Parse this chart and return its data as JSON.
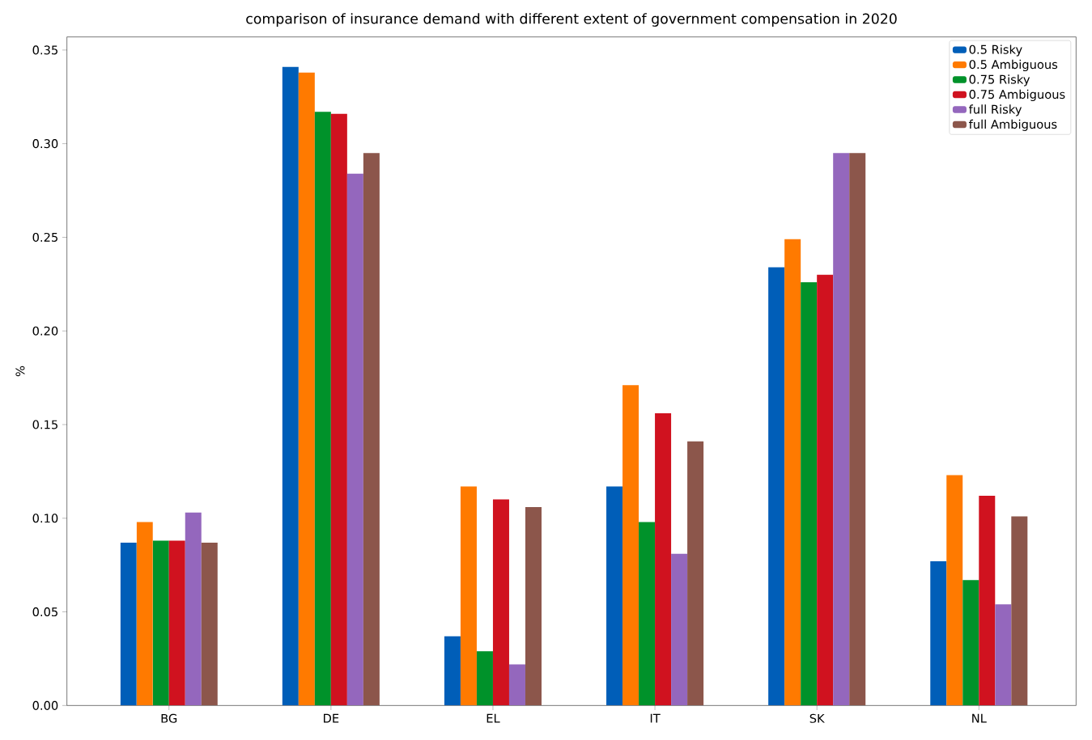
{
  "chart_data": {
    "type": "bar",
    "title": "comparison of insurance demand with different extent of government compensation in 2020",
    "ylabel": "%",
    "categories": [
      "BG",
      "DE",
      "EL",
      "IT",
      "SK",
      "NL"
    ],
    "series": [
      {
        "name": "0.5 Risky",
        "color": "#005eb8",
        "values": [
          0.087,
          0.341,
          0.037,
          0.117,
          0.234,
          0.077
        ]
      },
      {
        "name": "0.5 Ambiguous",
        "color": "#ff7a00",
        "values": [
          0.098,
          0.338,
          0.117,
          0.171,
          0.249,
          0.123
        ]
      },
      {
        "name": "0.75 Risky",
        "color": "#00922a",
        "values": [
          0.088,
          0.317,
          0.029,
          0.098,
          0.226,
          0.067
        ]
      },
      {
        "name": "0.75 Ambiguous",
        "color": "#d0121f",
        "values": [
          0.088,
          0.316,
          0.11,
          0.156,
          0.23,
          0.112
        ]
      },
      {
        "name": "full Risky",
        "color": "#9467bd",
        "values": [
          0.103,
          0.284,
          0.022,
          0.081,
          0.295,
          0.054
        ]
      },
      {
        "name": "full Ambiguous",
        "color": "#8c564b",
        "values": [
          0.087,
          0.295,
          0.106,
          0.141,
          0.295,
          0.101
        ]
      }
    ],
    "ylim": [
      0,
      0.357
    ],
    "yticks": [
      {
        "value": 0,
        "label": "0.00"
      },
      {
        "value": 0.05,
        "label": "0.05"
      },
      {
        "value": 0.1,
        "label": "0.10"
      },
      {
        "value": 0.15,
        "label": "0.15"
      },
      {
        "value": 0.2,
        "label": "0.20"
      },
      {
        "value": 0.25,
        "label": "0.25"
      },
      {
        "value": 0.3,
        "label": "0.30"
      },
      {
        "value": 0.35,
        "label": "0.35"
      }
    ],
    "grid": false,
    "legend": "top right"
  }
}
